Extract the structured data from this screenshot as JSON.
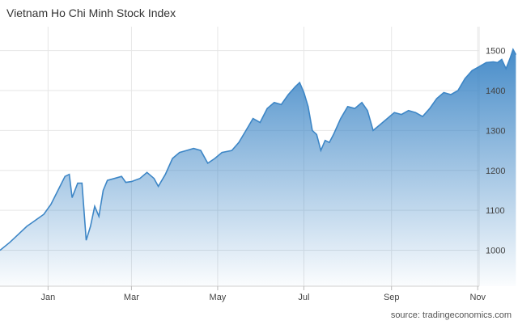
{
  "header": {
    "title": "Vietnam Ho Chi Minh Stock Index"
  },
  "footer": {
    "source": "source: tradingeconomics.com"
  },
  "colors": {
    "line": "#3d86c6",
    "fill_top": "#3d86c6",
    "fill_bottom": "#ffffff",
    "grid": "#e6e6e6"
  },
  "chart_data": {
    "type": "area",
    "title": "Vietnam Ho Chi Minh Stock Index",
    "xlabel": "",
    "ylabel": "",
    "ylim": [
      910,
      1560
    ],
    "yticks": [
      1000,
      1100,
      1200,
      1300,
      1400,
      1500
    ],
    "grid": true,
    "legend": "none",
    "x_range_days": [
      -19,
      320
    ],
    "x_tick_labels": [
      {
        "label": "Jan",
        "day": 15
      },
      {
        "label": "Mar",
        "day": 74
      },
      {
        "label": "May",
        "day": 135
      },
      {
        "label": "Jul",
        "day": 196
      },
      {
        "label": "Sep",
        "day": 258
      },
      {
        "label": "Nov",
        "day": 319
      }
    ],
    "series": [
      {
        "points": [
          [
            -19,
            1000
          ],
          [
            -12,
            1020
          ],
          [
            -6,
            1040
          ],
          [
            0,
            1060
          ],
          [
            4,
            1070
          ],
          [
            8,
            1080
          ],
          [
            12,
            1090
          ],
          [
            17,
            1115
          ],
          [
            22,
            1150
          ],
          [
            27,
            1185
          ],
          [
            30,
            1190
          ],
          [
            32,
            1132
          ],
          [
            36,
            1168
          ],
          [
            39,
            1168
          ],
          [
            42,
            1025
          ],
          [
            45,
            1060
          ],
          [
            48,
            1110
          ],
          [
            51,
            1085
          ],
          [
            54,
            1150
          ],
          [
            57,
            1175
          ],
          [
            62,
            1180
          ],
          [
            67,
            1185
          ],
          [
            70,
            1170
          ],
          [
            74,
            1172
          ],
          [
            80,
            1180
          ],
          [
            85,
            1195
          ],
          [
            90,
            1180
          ],
          [
            93,
            1160
          ],
          [
            98,
            1190
          ],
          [
            103,
            1230
          ],
          [
            108,
            1245
          ],
          [
            113,
            1250
          ],
          [
            118,
            1255
          ],
          [
            123,
            1250
          ],
          [
            128,
            1218
          ],
          [
            133,
            1230
          ],
          [
            138,
            1245
          ],
          [
            145,
            1250
          ],
          [
            150,
            1270
          ],
          [
            155,
            1300
          ],
          [
            160,
            1330
          ],
          [
            165,
            1320
          ],
          [
            170,
            1355
          ],
          [
            175,
            1370
          ],
          [
            180,
            1365
          ],
          [
            185,
            1390
          ],
          [
            190,
            1410
          ],
          [
            193,
            1420
          ],
          [
            196,
            1395
          ],
          [
            199,
            1360
          ],
          [
            202,
            1300
          ],
          [
            205,
            1290
          ],
          [
            208,
            1250
          ],
          [
            211,
            1275
          ],
          [
            214,
            1270
          ],
          [
            217,
            1290
          ],
          [
            222,
            1330
          ],
          [
            227,
            1360
          ],
          [
            232,
            1355
          ],
          [
            237,
            1370
          ],
          [
            241,
            1350
          ],
          [
            245,
            1300
          ],
          [
            250,
            1315
          ],
          [
            255,
            1330
          ],
          [
            260,
            1345
          ],
          [
            265,
            1340
          ],
          [
            270,
            1350
          ],
          [
            275,
            1345
          ],
          [
            280,
            1335
          ],
          [
            285,
            1355
          ],
          [
            290,
            1380
          ],
          [
            295,
            1395
          ],
          [
            300,
            1390
          ],
          [
            305,
            1400
          ],
          [
            310,
            1430
          ],
          [
            315,
            1450
          ],
          [
            320,
            1460
          ],
          [
            325,
            1470
          ],
          [
            330,
            1472
          ],
          [
            333,
            1470
          ],
          [
            336,
            1478
          ],
          [
            339,
            1455
          ],
          [
            342,
            1482
          ],
          [
            344,
            1503
          ],
          [
            346,
            1490
          ]
        ]
      }
    ]
  }
}
